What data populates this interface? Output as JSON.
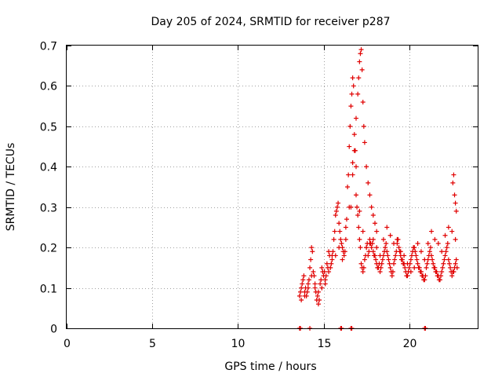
{
  "chart_data": {
    "type": "scatter",
    "title": "Day 205 of 2024, SRMTID for receiver p287",
    "xlabel": "GPS time / hours",
    "ylabel": "SRMTID / TECUs",
    "xlim": [
      0,
      24
    ],
    "ylim": [
      0,
      0.7
    ],
    "xticks": [
      0,
      5,
      10,
      15,
      20
    ],
    "xtick_labels": [
      "0",
      "5",
      "10",
      "15",
      "20"
    ],
    "yticks": [
      0,
      0.1,
      0.2,
      0.3,
      0.4,
      0.5,
      0.6,
      0.7
    ],
    "ytick_labels": [
      "0",
      "0.1",
      "0.2",
      "0.3",
      "0.4",
      "0.5",
      "0.6",
      "0.7"
    ],
    "grid": true,
    "marker": "+",
    "color": "#e00000",
    "series": [
      {
        "name": "SRMTID",
        "x": [
          13.6,
          13.7,
          13.8,
          13.9,
          14.0,
          14.1,
          14.2,
          14.3,
          14.4,
          14.5,
          14.6,
          14.7,
          14.8,
          14.9,
          15.0,
          15.1,
          15.2,
          15.3,
          15.4,
          15.5,
          15.6,
          15.7,
          15.8,
          15.9,
          16.0,
          16.1,
          16.2,
          16.3,
          16.4,
          16.5,
          16.6,
          16.7,
          16.8,
          16.9,
          17.0,
          17.1,
          17.2,
          17.3,
          17.4,
          17.5,
          17.6,
          17.7,
          17.8,
          17.9,
          18.0,
          18.1,
          18.2,
          18.3,
          18.4,
          18.5,
          18.6,
          18.7,
          18.8,
          18.9,
          19.0,
          19.1,
          19.2,
          19.3,
          19.4,
          19.5,
          19.6,
          19.7,
          19.8,
          19.9,
          20.0,
          20.1,
          20.2,
          20.3,
          20.4,
          20.5,
          20.6,
          20.7,
          20.8,
          20.9,
          21.0,
          21.1,
          21.2,
          21.3,
          21.4,
          21.5,
          21.6,
          21.7,
          21.8,
          21.9,
          22.0,
          22.1,
          22.2,
          22.3,
          22.4,
          22.5,
          22.6,
          22.7,
          22.8,
          13.65,
          13.75,
          13.85,
          13.95,
          14.05,
          14.15,
          14.25,
          14.35,
          14.45,
          14.55,
          14.65,
          14.75,
          14.85,
          14.95,
          15.05,
          15.15,
          15.25,
          15.35,
          15.45,
          15.55,
          15.65,
          15.75,
          15.85,
          15.95,
          16.05,
          16.15,
          16.25,
          16.35,
          16.45,
          16.55,
          16.65,
          16.75,
          16.85,
          16.95,
          17.05,
          17.15,
          17.25,
          17.35,
          17.45,
          17.55,
          17.65,
          17.75,
          17.85,
          17.95,
          18.05,
          18.15,
          18.25,
          18.35,
          18.45,
          18.55,
          18.65,
          18.75,
          18.85,
          18.95,
          19.05,
          19.15,
          19.25,
          19.35,
          19.45,
          19.55,
          19.65,
          19.75,
          19.85,
          19.95,
          20.05,
          20.15,
          20.25,
          20.35,
          20.45,
          20.55,
          20.65,
          20.75,
          20.85,
          20.95,
          21.05,
          21.15,
          21.25,
          21.35,
          21.45,
          21.55,
          21.65,
          21.75,
          21.85,
          21.95,
          22.05,
          22.15,
          22.25,
          22.35,
          22.45,
          22.55,
          22.65,
          22.75,
          16.6,
          16.7,
          16.8,
          16.9,
          17.0,
          17.05,
          17.1,
          17.15,
          17.2,
          17.25,
          17.3,
          17.35,
          17.4,
          17.5,
          17.6,
          17.7,
          17.8,
          17.9,
          18.0,
          18.1,
          13.7,
          13.9,
          14.1,
          14.3,
          14.5,
          14.7,
          14.9,
          15.1,
          15.3,
          15.5,
          15.7,
          15.9,
          16.1,
          16.3,
          16.5,
          16.7,
          16.9,
          17.1,
          17.3,
          17.5,
          17.7,
          17.9,
          18.1,
          18.3,
          18.5,
          18.7,
          18.9,
          19.1,
          19.3,
          19.5,
          19.7,
          19.9,
          20.1,
          20.3,
          20.5,
          20.7,
          20.9,
          21.1,
          21.3,
          21.5,
          21.7,
          21.9,
          22.1,
          22.3,
          22.5,
          22.7,
          22.55,
          22.6,
          22.65,
          22.7,
          22.75,
          13.6,
          13.65,
          14.2,
          16.0,
          16.05,
          16.6,
          16.65,
          20.9,
          20.95
        ],
        "y": [
          0.08,
          0.1,
          0.12,
          0.09,
          0.08,
          0.11,
          0.15,
          0.2,
          0.14,
          0.1,
          0.07,
          0.06,
          0.11,
          0.15,
          0.13,
          0.12,
          0.16,
          0.19,
          0.15,
          0.18,
          0.22,
          0.28,
          0.3,
          0.26,
          0.22,
          0.2,
          0.18,
          0.25,
          0.35,
          0.45,
          0.55,
          0.62,
          0.48,
          0.33,
          0.28,
          0.22,
          0.16,
          0.14,
          0.17,
          0.2,
          0.18,
          0.22,
          0.2,
          0.19,
          0.18,
          0.16,
          0.15,
          0.14,
          0.16,
          0.18,
          0.2,
          0.19,
          0.17,
          0.15,
          0.13,
          0.16,
          0.18,
          0.21,
          0.2,
          0.18,
          0.17,
          0.16,
          0.14,
          0.13,
          0.15,
          0.17,
          0.19,
          0.2,
          0.18,
          0.16,
          0.15,
          0.14,
          0.13,
          0.12,
          0.15,
          0.17,
          0.19,
          0.18,
          0.16,
          0.15,
          0.14,
          0.13,
          0.12,
          0.14,
          0.16,
          0.18,
          0.2,
          0.17,
          0.15,
          0.13,
          0.14,
          0.16,
          0.15,
          0.09,
          0.11,
          0.13,
          0.1,
          0.09,
          0.12,
          0.17,
          0.19,
          0.13,
          0.09,
          0.08,
          0.07,
          0.12,
          0.14,
          0.14,
          0.13,
          0.15,
          0.18,
          0.16,
          0.19,
          0.24,
          0.29,
          0.31,
          0.24,
          0.21,
          0.19,
          0.19,
          0.27,
          0.38,
          0.5,
          0.58,
          0.6,
          0.44,
          0.3,
          0.25,
          0.2,
          0.15,
          0.15,
          0.18,
          0.21,
          0.19,
          0.21,
          0.21,
          0.18,
          0.17,
          0.15,
          0.16,
          0.15,
          0.17,
          0.19,
          0.21,
          0.18,
          0.16,
          0.14,
          0.14,
          0.17,
          0.19,
          0.22,
          0.19,
          0.17,
          0.16,
          0.15,
          0.13,
          0.14,
          0.16,
          0.18,
          0.2,
          0.19,
          0.17,
          0.15,
          0.14,
          0.13,
          0.12,
          0.13,
          0.16,
          0.18,
          0.2,
          0.17,
          0.15,
          0.14,
          0.13,
          0.12,
          0.13,
          0.15,
          0.17,
          0.19,
          0.21,
          0.16,
          0.14,
          0.14,
          0.15,
          0.17,
          0.3,
          0.38,
          0.44,
          0.52,
          0.58,
          0.62,
          0.66,
          0.68,
          0.69,
          0.64,
          0.56,
          0.5,
          0.46,
          0.4,
          0.36,
          0.33,
          0.3,
          0.28,
          0.26,
          0.24,
          0.07,
          0.08,
          0.1,
          0.13,
          0.11,
          0.09,
          0.1,
          0.11,
          0.14,
          0.17,
          0.18,
          0.2,
          0.17,
          0.22,
          0.3,
          0.41,
          0.4,
          0.29,
          0.24,
          0.2,
          0.21,
          0.22,
          0.2,
          0.18,
          0.22,
          0.25,
          0.23,
          0.21,
          0.22,
          0.19,
          0.18,
          0.16,
          0.14,
          0.15,
          0.21,
          0.19,
          0.17,
          0.21,
          0.24,
          0.22,
          0.21,
          0.19,
          0.23,
          0.25,
          0.24,
          0.22,
          0.36,
          0.38,
          0.33,
          0.31,
          0.29,
          0.0,
          0.0,
          0.0,
          0.0,
          0.0,
          0.0,
          0.0,
          0.0,
          0.0
        ]
      }
    ]
  }
}
